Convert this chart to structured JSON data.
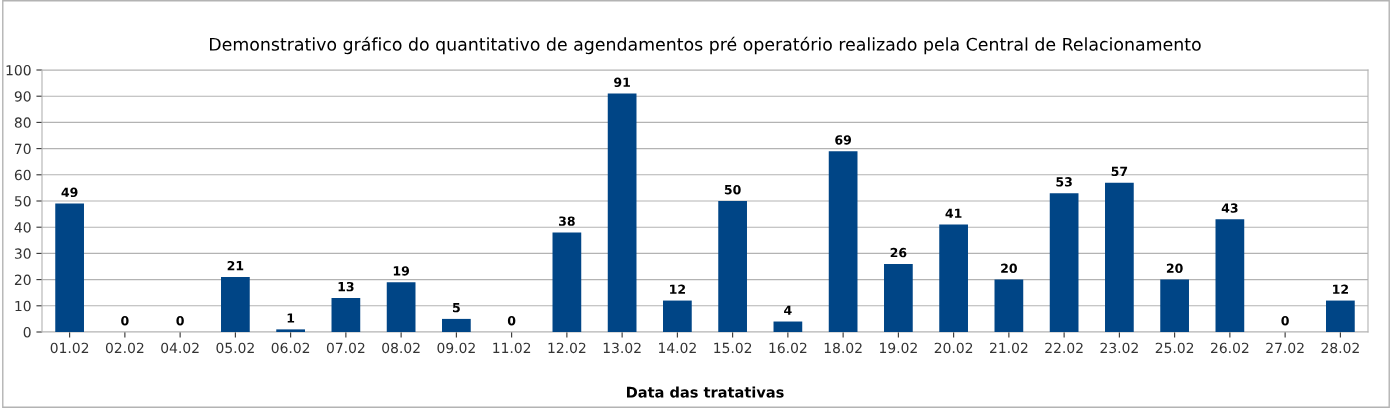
{
  "chart_data": {
    "type": "bar",
    "title": "Demonstrativo gráfico do quantitativo de agendamentos pré operatório realizado pela Central de Relacionamento",
    "xlabel": "Data das tratativas",
    "categories": [
      "01.02",
      "02.02",
      "04.02",
      "05.02",
      "06.02",
      "07.02",
      "08.02",
      "09.02",
      "11.02",
      "12.02",
      "13.02",
      "14.02",
      "15.02",
      "16.02",
      "18.02",
      "19.02",
      "20.02",
      "21.02",
      "22.02",
      "23.02",
      "25.02",
      "26.02",
      "27.02",
      "28.02"
    ],
    "values": [
      49,
      0,
      0,
      21,
      1,
      13,
      19,
      5,
      0,
      38,
      91,
      12,
      50,
      4,
      69,
      26,
      41,
      20,
      53,
      57,
      20,
      43,
      0,
      12
    ],
    "color": "#004586",
    "ylim": [
      0,
      100
    ],
    "yticks": [
      0,
      10,
      20,
      30,
      40,
      50,
      60,
      70,
      80,
      90,
      100
    ],
    "grid": "y",
    "data_labels": true,
    "legend": false
  }
}
